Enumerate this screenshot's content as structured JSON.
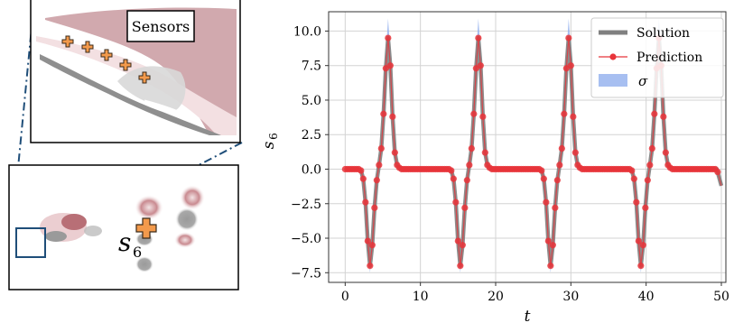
{
  "colors": {
    "solution": "#808080",
    "prediction": "#e8343a",
    "sigma": "#8aa9ec",
    "grid": "#d3d3d3",
    "wake_red": "#b86f76",
    "wake_gray": "#8c8c8c",
    "sensor_orange": "#f39a4c",
    "zoom_line": "#1f4e79"
  },
  "left": {
    "sensors_label": "Sensors",
    "sensor_symbol": "s",
    "sensor_subscript": "6"
  },
  "chart_data": {
    "type": "line",
    "xlabel": "t",
    "ylabel": "s",
    "ylabel_sub": "6",
    "xlim": [
      -2.2,
      50.6
    ],
    "ylim": [
      -8.2,
      11.4
    ],
    "xticks": [
      0,
      10,
      20,
      30,
      40,
      50
    ],
    "yticks": [
      -7.5,
      -5.0,
      -2.5,
      0.0,
      2.5,
      5.0,
      7.5,
      10.0
    ],
    "xtick_labels": [
      "0",
      "10",
      "20",
      "30",
      "40",
      "50"
    ],
    "ytick_labels": [
      "−7.5",
      "−5.0",
      "−2.5",
      "0.0",
      "2.5",
      "5.0",
      "7.5",
      "10.0"
    ],
    "grid": true,
    "legend_position": "top-right",
    "legend": [
      {
        "label": "Solution",
        "kind": "thick-line"
      },
      {
        "label": "Prediction",
        "kind": "line-marker"
      },
      {
        "label": "σ",
        "kind": "patch"
      }
    ],
    "cycle_starts": [
      1.8,
      13.8,
      25.8,
      37.8
    ],
    "pulse_shape": {
      "t_offsets": [
        0,
        0.3,
        0.6,
        0.9,
        1.2,
        1.5,
        1.8,
        2.1,
        2.4,
        2.7,
        3.0,
        3.3,
        3.6,
        3.9,
        4.2,
        4.5,
        4.8,
        5.1,
        5.4,
        5.7,
        6.0
      ],
      "values": [
        0.0,
        -0.1,
        -0.7,
        -2.4,
        -5.2,
        -7.0,
        -5.5,
        -2.8,
        -0.8,
        0.3,
        1.5,
        4.0,
        7.3,
        9.5,
        7.5,
        3.8,
        1.2,
        0.3,
        0.1,
        0.0,
        0.0
      ],
      "sigma_peak": 10.9,
      "sigma_trough": -7.5
    },
    "t_end": 50,
    "end_value": -1.2,
    "marker_spacing": 0.3
  }
}
